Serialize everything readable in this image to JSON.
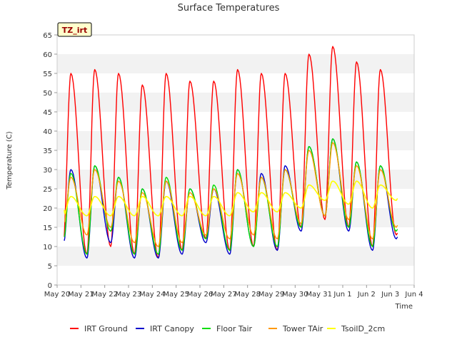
{
  "chart_data": {
    "type": "line",
    "title": "Surface Temperatures",
    "xlabel": "Time",
    "ylabel": "Temperature (C)",
    "site_tag": "TZ_irt",
    "ylim": [
      0,
      65
    ],
    "yticks": [
      0,
      5,
      10,
      15,
      20,
      25,
      30,
      35,
      40,
      45,
      50,
      55,
      60,
      65
    ],
    "xlim": [
      0,
      15
    ],
    "xtick_labels": [
      "May 20",
      "May 21",
      "May 22",
      "May 23",
      "May 24",
      "May 25",
      "May 26",
      "May 27",
      "May 28",
      "May 29",
      "May 30",
      "May 31",
      "Jun 1",
      "Jun 2",
      "Jun 3",
      "Jun 4"
    ],
    "grid": "alternating horizontal bands",
    "legend_position": "bottom",
    "daily_peak_day_fraction": 0.58,
    "series": [
      {
        "name": "IRT Ground",
        "color": "#ff0000",
        "start_day": 0.3,
        "daily_min": [
          11,
          8,
          10,
          8,
          7,
          9,
          12,
          9,
          10,
          9,
          15,
          17,
          15,
          10,
          13
        ],
        "daily_max": [
          55,
          56,
          55,
          52,
          55,
          53,
          53,
          56,
          55,
          55,
          60,
          62,
          58,
          56
        ]
      },
      {
        "name": "IRT Canopy",
        "color": "#0000cc",
        "start_day": 0.3,
        "daily_min": [
          10,
          7,
          11,
          7,
          7,
          8,
          11,
          8,
          10,
          9,
          14,
          18,
          14,
          9,
          12
        ],
        "daily_max": [
          30,
          31,
          28,
          25,
          27,
          25,
          25,
          30,
          29,
          31,
          36,
          38,
          32,
          31
        ]
      },
      {
        "name": "Floor Tair",
        "color": "#00dd00",
        "start_day": 0.3,
        "daily_min": [
          11,
          8,
          14,
          8,
          8,
          9,
          12,
          9,
          10,
          10,
          15,
          18,
          15,
          10,
          14
        ],
        "daily_max": [
          29,
          31,
          28,
          25,
          28,
          25,
          26,
          30,
          28,
          30,
          36,
          38,
          32,
          31
        ]
      },
      {
        "name": "Tower TAir",
        "color": "#ff9900",
        "start_day": 0.3,
        "daily_min": [
          15,
          13,
          15,
          11,
          10,
          11,
          13,
          12,
          13,
          12,
          16,
          18,
          17,
          12,
          15
        ],
        "daily_max": [
          28,
          30,
          27,
          24,
          27,
          24,
          25,
          29,
          28,
          30,
          35,
          37,
          31,
          30
        ]
      },
      {
        "name": "TsoilD_2cm",
        "color": "#ffff00",
        "start_day": 0.3,
        "daily_min": [
          18,
          18,
          18,
          18,
          18,
          18,
          18,
          18,
          19,
          19,
          20,
          22,
          21,
          20,
          22
        ],
        "daily_max": [
          23,
          23,
          23,
          23,
          23,
          23,
          23,
          24,
          24,
          24,
          26,
          27,
          27,
          26
        ]
      }
    ]
  }
}
